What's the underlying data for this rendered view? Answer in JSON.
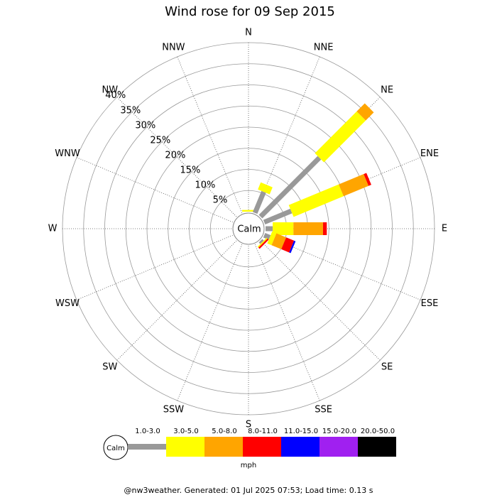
{
  "chart_data": {
    "type": "windrose",
    "title": "Wind rose for 09 Sep 2015",
    "directions": [
      "N",
      "NNE",
      "NE",
      "ENE",
      "E",
      "ESE",
      "SE",
      "SSE",
      "S",
      "SSW",
      "SW",
      "WSW",
      "W",
      "WNW",
      "NW",
      "NNW"
    ],
    "series": [
      {
        "name": "1.0-3.0",
        "color": "#999999",
        "values": [
          0,
          5.4,
          19.7,
          6.9,
          1.7,
          1.4,
          0.5,
          0,
          0,
          0,
          0,
          0,
          0,
          0,
          0,
          0
        ]
      },
      {
        "name": "3.0-5.0",
        "color": "#ffff00",
        "values": [
          0.4,
          1.8,
          14,
          12.8,
          4.9,
          1.1,
          0.3,
          0,
          0,
          0,
          0,
          0,
          0,
          0,
          0,
          0
        ]
      },
      {
        "name": "5.0-8.0",
        "color": "#ffa500",
        "values": [
          0,
          0,
          2.7,
          6.4,
          7,
          2.5,
          0,
          0,
          0,
          0,
          0,
          0,
          0,
          0,
          0,
          0
        ]
      },
      {
        "name": "8.0-11.0",
        "color": "#ff0000",
        "values": [
          0,
          0,
          0,
          0.7,
          0.9,
          2,
          0.4,
          0,
          0,
          0,
          0,
          0,
          0,
          0,
          0,
          0
        ]
      },
      {
        "name": "11.0-15.0",
        "color": "#0000ff",
        "values": [
          0,
          0,
          0,
          0,
          0,
          0.4,
          0,
          0,
          0,
          0,
          0,
          0,
          0,
          0,
          0,
          0
        ]
      },
      {
        "name": "15.0-20.0",
        "color": "#a020f0",
        "values": [
          0,
          0,
          0,
          0,
          0,
          0,
          0,
          0,
          0,
          0,
          0,
          0,
          0,
          0,
          0,
          0
        ]
      },
      {
        "name": "20.0-50.0",
        "color": "#000000",
        "values": [
          0,
          0,
          0,
          0,
          0,
          0,
          0,
          0,
          0,
          0,
          0,
          0,
          0,
          0,
          0,
          0
        ]
      }
    ],
    "rlim": [
      0,
      40
    ],
    "rticks": [
      {
        "value": 5,
        "label": "5%"
      },
      {
        "value": 10,
        "label": "10%"
      },
      {
        "value": 15,
        "label": "15%"
      },
      {
        "value": 20,
        "label": "20%"
      },
      {
        "value": 25,
        "label": "25%"
      },
      {
        "value": 30,
        "label": "30%"
      },
      {
        "value": 35,
        "label": "35%"
      },
      {
        "value": 40,
        "label": "40%"
      }
    ],
    "calm_label": "Calm",
    "unit": "mph"
  },
  "footer": "@nw3weather.  Generated: 01 Jul 2025 07:53; Load time: 0.13 s"
}
